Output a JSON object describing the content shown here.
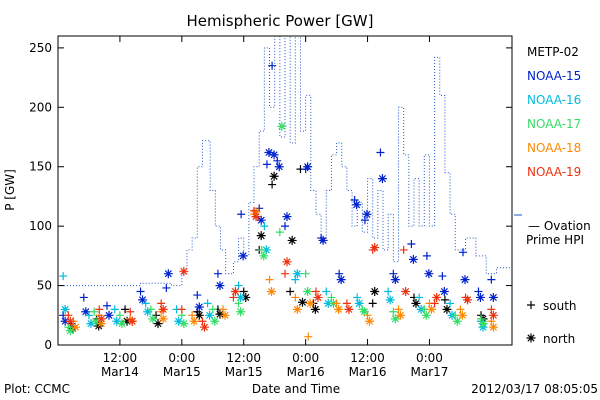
{
  "chart_data": {
    "type": "scatter",
    "title": "Hemispheric Power [GW]",
    "ylabel": "P [GW]",
    "xlabel": "Date and Time",
    "ylim": [
      0,
      260
    ],
    "y_ticks": [
      0,
      50,
      100,
      150,
      200,
      250
    ],
    "x_range": [
      "2012-03-14T00:00",
      "2012-03-17T16:00"
    ],
    "x_ticks": [
      {
        "time": "2012-03-14T12:00",
        "top": "12:00",
        "bottom": "Mar14"
      },
      {
        "time": "2012-03-15T00:00",
        "top": "0:00",
        "bottom": "Mar15"
      },
      {
        "time": "2012-03-15T12:00",
        "top": "12:00",
        "bottom": "Mar15"
      },
      {
        "time": "2012-03-16T00:00",
        "top": "0:00",
        "bottom": "Mar16"
      },
      {
        "time": "2012-03-16T12:00",
        "top": "12:00",
        "bottom": "Mar16"
      },
      {
        "time": "2012-03-17T00:00",
        "top": "0:00",
        "bottom": "Mar17"
      }
    ],
    "footer_left": "Plot: CCMC",
    "footer_right": "2012/03/17 08:05:05",
    "marker_legend": [
      {
        "marker": "+",
        "label": "south"
      },
      {
        "marker": "*",
        "label": "north"
      }
    ],
    "series": [
      {
        "name": "METP-02",
        "color": "#000000",
        "points": [
          {
            "t": "2012-03-14T02:30",
            "south": 18,
            "north": 14
          },
          {
            "t": "2012-03-14T07:30",
            "south": 22,
            "north": 16
          },
          {
            "t": "2012-03-14T13:00",
            "south": 30,
            "north": 20
          },
          {
            "t": "2012-03-14T19:00",
            "south": 25,
            "north": 18
          },
          {
            "t": "2012-03-15T03:00",
            "south": 28,
            "north": 25
          },
          {
            "t": "2012-03-15T07:00",
            "south": 30,
            "north": 26
          },
          {
            "t": "2012-03-15T12:00",
            "south": 45,
            "north": 40
          },
          {
            "t": "2012-03-15T15:00",
            "south": 80,
            "north": 92
          },
          {
            "t": "2012-03-15T17:30",
            "south": 135,
            "north": 142
          },
          {
            "t": "2012-03-15T21:00",
            "south": 45,
            "north": 88
          },
          {
            "t": "2012-03-15T23:00",
            "south": 148,
            "north": 36
          },
          {
            "t": "2012-03-16T01:30",
            "south": 35,
            "north": 30
          },
          {
            "t": "2012-03-16T13:00",
            "south": 35,
            "north": 45
          },
          {
            "t": "2012-03-16T21:00",
            "south": 40,
            "north": 35
          },
          {
            "t": "2012-03-17T03:00",
            "south": 38,
            "north": 30
          },
          {
            "t": "2012-03-17T10:00",
            "south": 25,
            "north": 22
          }
        ]
      },
      {
        "name": "NOAA-15",
        "color": "#0022cc",
        "points": [
          {
            "t": "2012-03-14T01:00",
            "south": 25,
            "north": 20
          },
          {
            "t": "2012-03-14T05:00",
            "south": 40,
            "north": 28
          },
          {
            "t": "2012-03-14T09:30",
            "south": 33,
            "north": 25
          },
          {
            "t": "2012-03-14T16:00",
            "south": 45,
            "north": 38
          },
          {
            "t": "2012-03-14T21:00",
            "south": 48,
            "north": 60
          },
          {
            "t": "2012-03-15T03:00",
            "south": 42,
            "north": 32
          },
          {
            "t": "2012-03-15T07:00",
            "south": 60,
            "north": 50
          },
          {
            "t": "2012-03-15T11:30",
            "south": 110,
            "north": 75
          },
          {
            "t": "2012-03-15T15:00",
            "south": 115,
            "north": 105
          },
          {
            "t": "2012-03-15T16:30",
            "south": 152,
            "north": 162
          },
          {
            "t": "2012-03-15T17:30",
            "south": 235,
            "north": 160
          },
          {
            "t": "2012-03-15T18:30",
            "south": 155,
            "north": 150
          },
          {
            "t": "2012-03-15T20:00",
            "south": 100,
            "north": 108
          },
          {
            "t": "2012-03-16T00:00",
            "south": 148,
            "north": 150
          },
          {
            "t": "2012-03-16T03:00",
            "south": 90,
            "north": 88
          },
          {
            "t": "2012-03-16T06:30",
            "south": 60,
            "north": 55
          },
          {
            "t": "2012-03-16T09:30",
            "south": 122,
            "north": 118
          },
          {
            "t": "2012-03-16T11:30",
            "south": 105,
            "north": 110
          },
          {
            "t": "2012-03-16T14:30",
            "south": 162,
            "north": 140
          },
          {
            "t": "2012-03-16T17:00",
            "south": 60,
            "north": 55
          },
          {
            "t": "2012-03-16T20:30",
            "south": 85,
            "north": 72
          },
          {
            "t": "2012-03-16T23:30",
            "south": 75,
            "north": 60
          },
          {
            "t": "2012-03-17T02:30",
            "south": 58,
            "north": 45
          },
          {
            "t": "2012-03-17T06:30",
            "south": 78,
            "north": 55
          },
          {
            "t": "2012-03-17T09:30",
            "south": 45,
            "north": 40
          },
          {
            "t": "2012-03-17T12:00",
            "south": 55,
            "north": 40
          }
        ]
      },
      {
        "name": "NOAA-16",
        "color": "#00bbdd",
        "points": [
          {
            "t": "2012-03-14T01:00",
            "south": 58,
            "north": 30
          },
          {
            "t": "2012-03-14T06:00",
            "south": 25,
            "north": 18
          },
          {
            "t": "2012-03-14T11:00",
            "south": 30,
            "north": 20
          },
          {
            "t": "2012-03-14T17:00",
            "south": 35,
            "north": 28
          },
          {
            "t": "2012-03-14T23:00",
            "south": 30,
            "north": 20
          },
          {
            "t": "2012-03-15T05:00",
            "south": 35,
            "north": 25
          },
          {
            "t": "2012-03-15T11:00",
            "south": 50,
            "north": 40
          },
          {
            "t": "2012-03-15T16:00",
            "south": 100,
            "north": 80
          },
          {
            "t": "2012-03-15T22:00",
            "south": 55,
            "north": 60
          },
          {
            "t": "2012-03-16T04:00",
            "south": 45,
            "north": 35
          },
          {
            "t": "2012-03-16T10:00",
            "south": 40,
            "north": 35
          },
          {
            "t": "2012-03-16T16:00",
            "south": 45,
            "north": 38
          },
          {
            "t": "2012-03-16T22:00",
            "south": 40,
            "north": 30
          },
          {
            "t": "2012-03-17T04:00",
            "south": 35,
            "north": 25
          },
          {
            "t": "2012-03-17T10:00",
            "south": 20,
            "north": 15
          }
        ]
      },
      {
        "name": "NOAA-17",
        "color": "#33dd66",
        "points": [
          {
            "t": "2012-03-14T02:00",
            "south": 15,
            "north": 12
          },
          {
            "t": "2012-03-14T07:00",
            "south": 28,
            "north": 20
          },
          {
            "t": "2012-03-14T12:00",
            "south": 25,
            "north": 18
          },
          {
            "t": "2012-03-14T18:00",
            "south": 30,
            "north": 22
          },
          {
            "t": "2012-03-15T00:00",
            "south": 25,
            "north": 18
          },
          {
            "t": "2012-03-15T06:00",
            "south": 30,
            "north": 20
          },
          {
            "t": "2012-03-15T11:00",
            "south": 35,
            "north": 28
          },
          {
            "t": "2012-03-15T15:30",
            "south": 80,
            "north": 75
          },
          {
            "t": "2012-03-15T19:00",
            "south": 95,
            "north": 184
          },
          {
            "t": "2012-03-16T00:00",
            "south": 60,
            "north": 45
          },
          {
            "t": "2012-03-16T05:00",
            "south": 40,
            "north": 35
          },
          {
            "t": "2012-03-16T11:00",
            "south": 30,
            "north": 28
          },
          {
            "t": "2012-03-16T17:00",
            "south": 28,
            "north": 22
          },
          {
            "t": "2012-03-16T23:00",
            "south": 30,
            "north": 25
          },
          {
            "t": "2012-03-17T05:00",
            "south": 25,
            "north": 20
          },
          {
            "t": "2012-03-17T10:00",
            "south": 22,
            "north": 18
          }
        ]
      },
      {
        "name": "NOAA-18",
        "color": "#ff8800",
        "points": [
          {
            "t": "2012-03-14T03:00",
            "south": 20,
            "north": 15
          },
          {
            "t": "2012-03-14T08:00",
            "south": 25,
            "north": 18
          },
          {
            "t": "2012-03-14T14:00",
            "south": 22,
            "north": 20
          },
          {
            "t": "2012-03-14T20:00",
            "south": 28,
            "north": 22
          },
          {
            "t": "2012-03-15T02:00",
            "south": 25,
            "north": 20
          },
          {
            "t": "2012-03-15T08:00",
            "south": 30,
            "north": 25
          },
          {
            "t": "2012-03-15T14:00",
            "south": 110,
            "north": 112
          },
          {
            "t": "2012-03-15T17:00",
            "south": 55,
            "north": 45
          },
          {
            "t": "2012-03-15T22:00",
            "south": 40,
            "north": 30
          },
          {
            "t": "2012-03-16T00:30",
            "south": 7,
            "north": 35
          },
          {
            "t": "2012-03-16T06:00",
            "south": 35,
            "north": 30
          },
          {
            "t": "2012-03-16T12:00",
            "south": 25,
            "north": 20
          },
          {
            "t": "2012-03-16T18:00",
            "south": 30,
            "north": 25
          },
          {
            "t": "2012-03-17T00:00",
            "south": 35,
            "north": 30
          },
          {
            "t": "2012-03-17T06:00",
            "south": 30,
            "north": 25
          },
          {
            "t": "2012-03-17T12:00",
            "south": 20,
            "north": 15
          }
        ]
      },
      {
        "name": "NOAA-19",
        "color": "#ee3311",
        "points": [
          {
            "t": "2012-03-14T02:00",
            "south": 25,
            "north": 20
          },
          {
            "t": "2012-03-14T08:00",
            "south": 30,
            "north": 22
          },
          {
            "t": "2012-03-14T14:00",
            "south": 28,
            "north": 20
          },
          {
            "t": "2012-03-14T20:00",
            "south": 35,
            "north": 30
          },
          {
            "t": "2012-03-15T00:00",
            "south": 30,
            "north": 62
          },
          {
            "t": "2012-03-15T04:00",
            "south": 20,
            "north": 15
          },
          {
            "t": "2012-03-15T10:00",
            "south": 40,
            "north": 45
          },
          {
            "t": "2012-03-15T14:00",
            "south": 113,
            "north": 108
          },
          {
            "t": "2012-03-15T20:00",
            "south": 60,
            "north": 70
          },
          {
            "t": "2012-03-16T02:00",
            "south": 45,
            "north": 40
          },
          {
            "t": "2012-03-16T08:00",
            "south": 35,
            "north": 30
          },
          {
            "t": "2012-03-16T13:00",
            "south": 80,
            "north": 82
          },
          {
            "t": "2012-03-16T19:00",
            "south": 80,
            "north": 45
          },
          {
            "t": "2012-03-17T01:00",
            "south": 35,
            "north": 40
          },
          {
            "t": "2012-03-17T07:00",
            "south": 40,
            "north": 38
          },
          {
            "t": "2012-03-17T12:00",
            "south": 30,
            "north": 25
          }
        ]
      }
    ],
    "ovation": {
      "label_line1": "— Ovation",
      "label_line2": "Prime HPI",
      "color": "#2255cc",
      "steps": [
        {
          "t": "2012-03-14T00:00",
          "v": 50
        },
        {
          "t": "2012-03-14T06:00",
          "v": 50
        },
        {
          "t": "2012-03-14T16:00",
          "v": 52
        },
        {
          "t": "2012-03-14T22:00",
          "v": 50
        },
        {
          "t": "2012-03-15T00:00",
          "v": 60
        },
        {
          "t": "2012-03-15T01:00",
          "v": 80
        },
        {
          "t": "2012-03-15T02:00",
          "v": 90
        },
        {
          "t": "2012-03-15T03:00",
          "v": 150
        },
        {
          "t": "2012-03-15T04:00",
          "v": 172
        },
        {
          "t": "2012-03-15T05:30",
          "v": 130
        },
        {
          "t": "2012-03-15T06:30",
          "v": 100
        },
        {
          "t": "2012-03-15T07:30",
          "v": 80
        },
        {
          "t": "2012-03-15T08:30",
          "v": 60
        },
        {
          "t": "2012-03-15T10:00",
          "v": 70
        },
        {
          "t": "2012-03-15T11:00",
          "v": 90
        },
        {
          "t": "2012-03-15T12:00",
          "v": 75
        },
        {
          "t": "2012-03-15T13:00",
          "v": 120
        },
        {
          "t": "2012-03-15T14:00",
          "v": 150
        },
        {
          "t": "2012-03-15T15:00",
          "v": 180
        },
        {
          "t": "2012-03-15T16:00",
          "v": 250
        },
        {
          "t": "2012-03-15T17:00",
          "v": 200
        },
        {
          "t": "2012-03-15T18:00",
          "v": 260
        },
        {
          "t": "2012-03-15T19:00",
          "v": 175
        },
        {
          "t": "2012-03-15T20:00",
          "v": 260
        },
        {
          "t": "2012-03-15T21:00",
          "v": 170
        },
        {
          "t": "2012-03-15T22:00",
          "v": 260
        },
        {
          "t": "2012-03-15T23:00",
          "v": 180
        },
        {
          "t": "2012-03-16T00:00",
          "v": 210
        },
        {
          "t": "2012-03-16T01:00",
          "v": 130
        },
        {
          "t": "2012-03-16T02:00",
          "v": 110
        },
        {
          "t": "2012-03-16T03:00",
          "v": 90
        },
        {
          "t": "2012-03-16T04:00",
          "v": 130
        },
        {
          "t": "2012-03-16T05:00",
          "v": 160
        },
        {
          "t": "2012-03-16T06:00",
          "v": 170
        },
        {
          "t": "2012-03-16T07:00",
          "v": 150
        },
        {
          "t": "2012-03-16T08:00",
          "v": 130
        },
        {
          "t": "2012-03-16T09:00",
          "v": 100
        },
        {
          "t": "2012-03-16T10:00",
          "v": 120
        },
        {
          "t": "2012-03-16T11:00",
          "v": 95
        },
        {
          "t": "2012-03-16T12:00",
          "v": 140
        },
        {
          "t": "2012-03-16T13:00",
          "v": 90
        },
        {
          "t": "2012-03-16T14:00",
          "v": 130
        },
        {
          "t": "2012-03-16T15:00",
          "v": 80
        },
        {
          "t": "2012-03-16T16:00",
          "v": 110
        },
        {
          "t": "2012-03-16T17:00",
          "v": 70
        },
        {
          "t": "2012-03-16T18:00",
          "v": 200
        },
        {
          "t": "2012-03-16T19:00",
          "v": 160
        },
        {
          "t": "2012-03-16T20:00",
          "v": 100
        },
        {
          "t": "2012-03-16T21:00",
          "v": 140
        },
        {
          "t": "2012-03-16T22:00",
          "v": 100
        },
        {
          "t": "2012-03-16T23:00",
          "v": 160
        },
        {
          "t": "2012-03-17T00:00",
          "v": 100
        },
        {
          "t": "2012-03-17T01:00",
          "v": 242
        },
        {
          "t": "2012-03-17T02:00",
          "v": 210
        },
        {
          "t": "2012-03-17T03:00",
          "v": 145
        },
        {
          "t": "2012-03-17T04:00",
          "v": 110
        },
        {
          "t": "2012-03-17T05:00",
          "v": 80
        },
        {
          "t": "2012-03-17T07:00",
          "v": 90
        },
        {
          "t": "2012-03-17T09:00",
          "v": 75
        },
        {
          "t": "2012-03-17T11:00",
          "v": 60
        },
        {
          "t": "2012-03-17T13:00",
          "v": 65
        },
        {
          "t": "2012-03-17T16:00",
          "v": 65
        }
      ]
    }
  }
}
